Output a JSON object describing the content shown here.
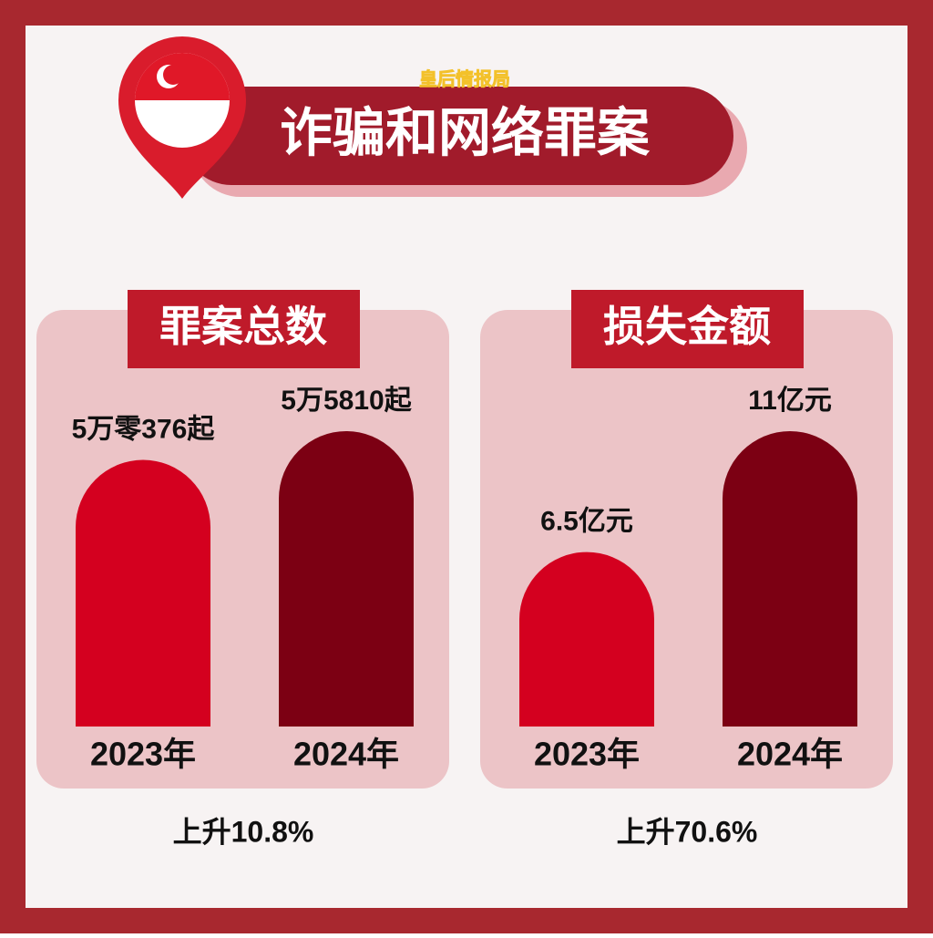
{
  "title": "诈骗和网络罪案",
  "brand": "皇后情报局",
  "chart_data": [
    {
      "type": "bar",
      "title": "罪案总数",
      "categories": [
        "2023年",
        "2024年"
      ],
      "values": [
        50376,
        55810
      ],
      "value_labels": [
        "5万零376起",
        "5万5810起"
      ],
      "colors": [
        "#d4001f",
        "#7c0013"
      ],
      "note": "上升10.8%"
    },
    {
      "type": "bar",
      "title": "损失金额",
      "categories": [
        "2023年",
        "2024年"
      ],
      "values": [
        6.5,
        11
      ],
      "value_labels": [
        "6.5亿元",
        "11亿元"
      ],
      "colors": [
        "#d4001f",
        "#7c0013"
      ],
      "note": "上升70.6%"
    }
  ]
}
